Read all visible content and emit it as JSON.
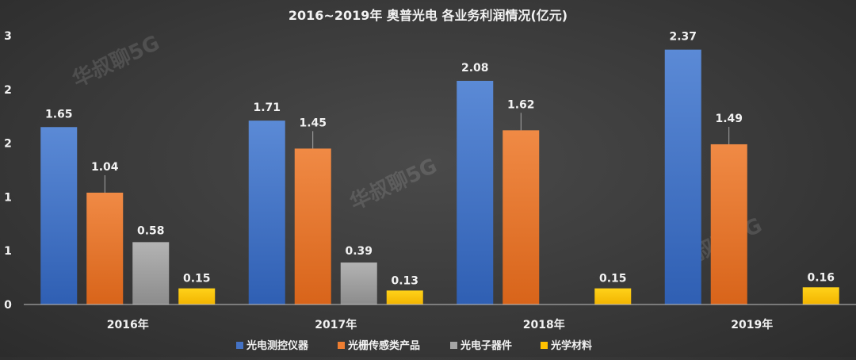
{
  "chart_data": {
    "type": "bar",
    "title": "2016~2019年 奥普光电 各业务利润情况(亿元)",
    "categories": [
      "2016年",
      "2017年",
      "2018年",
      "2019年"
    ],
    "series": [
      {
        "name": "光电测控仪器",
        "color": "#4472c4",
        "values": [
          1.65,
          1.71,
          2.08,
          2.37
        ]
      },
      {
        "name": "光栅传感类产品",
        "color": "#ed7d31",
        "values": [
          1.04,
          1.45,
          1.62,
          1.49
        ]
      },
      {
        "name": "光电子器件",
        "color": "#a5a5a5",
        "values": [
          0.58,
          0.39,
          null,
          null
        ]
      },
      {
        "name": "光学材料",
        "color": "#ffc000",
        "values": [
          0.15,
          0.13,
          0.15,
          0.16
        ]
      }
    ],
    "y_ticks": [
      "0",
      "1",
      "1",
      "2",
      "2",
      "3"
    ],
    "ylim": [
      0,
      2.5
    ],
    "legend_position": "bottom",
    "grid": false,
    "watermark": "华叔聊5G"
  }
}
